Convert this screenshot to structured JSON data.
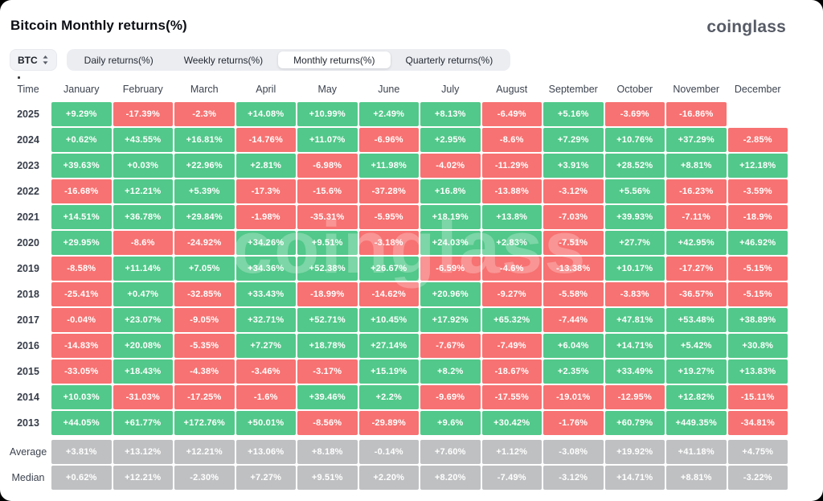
{
  "page": {
    "title": "Bitcoin Monthly returns(%)",
    "brand": "coinglass",
    "watermark": "coinglass"
  },
  "controls": {
    "symbol": "BTC",
    "tabs": [
      {
        "label": "Daily returns(%)",
        "active": false
      },
      {
        "label": "Weekly returns(%)",
        "active": false
      },
      {
        "label": "Monthly returns(%)",
        "active": true
      },
      {
        "label": "Quarterly returns(%)",
        "active": false
      }
    ]
  },
  "colors": {
    "green": "#52c88a",
    "red": "#f77272",
    "neutral": "#bfc0c2",
    "tab_bar": "#ebedf1",
    "card": "#ffffff"
  },
  "table": {
    "time_header": "Time",
    "months": [
      "January",
      "February",
      "March",
      "April",
      "May",
      "June",
      "July",
      "August",
      "September",
      "October",
      "November",
      "December"
    ],
    "rows": [
      {
        "label": "2025",
        "type": "year",
        "cells": [
          {
            "v": "+9.29%",
            "c": "g"
          },
          {
            "v": "-17.39%",
            "c": "r"
          },
          {
            "v": "-2.3%",
            "c": "r"
          },
          {
            "v": "+14.08%",
            "c": "g"
          },
          {
            "v": "+10.99%",
            "c": "g"
          },
          {
            "v": "+2.49%",
            "c": "g"
          },
          {
            "v": "+8.13%",
            "c": "g"
          },
          {
            "v": "-6.49%",
            "c": "r"
          },
          {
            "v": "+5.16%",
            "c": "g"
          },
          {
            "v": "-3.69%",
            "c": "r"
          },
          {
            "v": "-16.86%",
            "c": "r"
          },
          {
            "v": "",
            "c": "e"
          }
        ]
      },
      {
        "label": "2024",
        "type": "year",
        "cells": [
          {
            "v": "+0.62%",
            "c": "g"
          },
          {
            "v": "+43.55%",
            "c": "g"
          },
          {
            "v": "+16.81%",
            "c": "g"
          },
          {
            "v": "-14.76%",
            "c": "r"
          },
          {
            "v": "+11.07%",
            "c": "g"
          },
          {
            "v": "-6.96%",
            "c": "r"
          },
          {
            "v": "+2.95%",
            "c": "g"
          },
          {
            "v": "-8.6%",
            "c": "r"
          },
          {
            "v": "+7.29%",
            "c": "g"
          },
          {
            "v": "+10.76%",
            "c": "g"
          },
          {
            "v": "+37.29%",
            "c": "g"
          },
          {
            "v": "-2.85%",
            "c": "r"
          }
        ]
      },
      {
        "label": "2023",
        "type": "year",
        "cells": [
          {
            "v": "+39.63%",
            "c": "g"
          },
          {
            "v": "+0.03%",
            "c": "g"
          },
          {
            "v": "+22.96%",
            "c": "g"
          },
          {
            "v": "+2.81%",
            "c": "g"
          },
          {
            "v": "-6.98%",
            "c": "r"
          },
          {
            "v": "+11.98%",
            "c": "g"
          },
          {
            "v": "-4.02%",
            "c": "r"
          },
          {
            "v": "-11.29%",
            "c": "r"
          },
          {
            "v": "+3.91%",
            "c": "g"
          },
          {
            "v": "+28.52%",
            "c": "g"
          },
          {
            "v": "+8.81%",
            "c": "g"
          },
          {
            "v": "+12.18%",
            "c": "g"
          }
        ]
      },
      {
        "label": "2022",
        "type": "year",
        "cells": [
          {
            "v": "-16.68%",
            "c": "r"
          },
          {
            "v": "+12.21%",
            "c": "g"
          },
          {
            "v": "+5.39%",
            "c": "g"
          },
          {
            "v": "-17.3%",
            "c": "r"
          },
          {
            "v": "-15.6%",
            "c": "r"
          },
          {
            "v": "-37.28%",
            "c": "r"
          },
          {
            "v": "+16.8%",
            "c": "g"
          },
          {
            "v": "-13.88%",
            "c": "r"
          },
          {
            "v": "-3.12%",
            "c": "r"
          },
          {
            "v": "+5.56%",
            "c": "g"
          },
          {
            "v": "-16.23%",
            "c": "r"
          },
          {
            "v": "-3.59%",
            "c": "r"
          }
        ]
      },
      {
        "label": "2021",
        "type": "year",
        "cells": [
          {
            "v": "+14.51%",
            "c": "g"
          },
          {
            "v": "+36.78%",
            "c": "g"
          },
          {
            "v": "+29.84%",
            "c": "g"
          },
          {
            "v": "-1.98%",
            "c": "r"
          },
          {
            "v": "-35.31%",
            "c": "r"
          },
          {
            "v": "-5.95%",
            "c": "r"
          },
          {
            "v": "+18.19%",
            "c": "g"
          },
          {
            "v": "+13.8%",
            "c": "g"
          },
          {
            "v": "-7.03%",
            "c": "r"
          },
          {
            "v": "+39.93%",
            "c": "g"
          },
          {
            "v": "-7.11%",
            "c": "r"
          },
          {
            "v": "-18.9%",
            "c": "r"
          }
        ]
      },
      {
        "label": "2020",
        "type": "year",
        "cells": [
          {
            "v": "+29.95%",
            "c": "g"
          },
          {
            "v": "-8.6%",
            "c": "r"
          },
          {
            "v": "-24.92%",
            "c": "r"
          },
          {
            "v": "+34.26%",
            "c": "g"
          },
          {
            "v": "+9.51%",
            "c": "g"
          },
          {
            "v": "-3.18%",
            "c": "r"
          },
          {
            "v": "+24.03%",
            "c": "g"
          },
          {
            "v": "+2.83%",
            "c": "g"
          },
          {
            "v": "-7.51%",
            "c": "r"
          },
          {
            "v": "+27.7%",
            "c": "g"
          },
          {
            "v": "+42.95%",
            "c": "g"
          },
          {
            "v": "+46.92%",
            "c": "g"
          }
        ]
      },
      {
        "label": "2019",
        "type": "year",
        "cells": [
          {
            "v": "-8.58%",
            "c": "r"
          },
          {
            "v": "+11.14%",
            "c": "g"
          },
          {
            "v": "+7.05%",
            "c": "g"
          },
          {
            "v": "+34.36%",
            "c": "g"
          },
          {
            "v": "+52.38%",
            "c": "g"
          },
          {
            "v": "+26.67%",
            "c": "g"
          },
          {
            "v": "-6.59%",
            "c": "r"
          },
          {
            "v": "-4.6%",
            "c": "r"
          },
          {
            "v": "-13.38%",
            "c": "r"
          },
          {
            "v": "+10.17%",
            "c": "g"
          },
          {
            "v": "-17.27%",
            "c": "r"
          },
          {
            "v": "-5.15%",
            "c": "r"
          }
        ]
      },
      {
        "label": "2018",
        "type": "year",
        "cells": [
          {
            "v": "-25.41%",
            "c": "r"
          },
          {
            "v": "+0.47%",
            "c": "g"
          },
          {
            "v": "-32.85%",
            "c": "r"
          },
          {
            "v": "+33.43%",
            "c": "g"
          },
          {
            "v": "-18.99%",
            "c": "r"
          },
          {
            "v": "-14.62%",
            "c": "r"
          },
          {
            "v": "+20.96%",
            "c": "g"
          },
          {
            "v": "-9.27%",
            "c": "r"
          },
          {
            "v": "-5.58%",
            "c": "r"
          },
          {
            "v": "-3.83%",
            "c": "r"
          },
          {
            "v": "-36.57%",
            "c": "r"
          },
          {
            "v": "-5.15%",
            "c": "r"
          }
        ]
      },
      {
        "label": "2017",
        "type": "year",
        "cells": [
          {
            "v": "-0.04%",
            "c": "r"
          },
          {
            "v": "+23.07%",
            "c": "g"
          },
          {
            "v": "-9.05%",
            "c": "r"
          },
          {
            "v": "+32.71%",
            "c": "g"
          },
          {
            "v": "+52.71%",
            "c": "g"
          },
          {
            "v": "+10.45%",
            "c": "g"
          },
          {
            "v": "+17.92%",
            "c": "g"
          },
          {
            "v": "+65.32%",
            "c": "g"
          },
          {
            "v": "-7.44%",
            "c": "r"
          },
          {
            "v": "+47.81%",
            "c": "g"
          },
          {
            "v": "+53.48%",
            "c": "g"
          },
          {
            "v": "+38.89%",
            "c": "g"
          }
        ]
      },
      {
        "label": "2016",
        "type": "year",
        "cells": [
          {
            "v": "-14.83%",
            "c": "r"
          },
          {
            "v": "+20.08%",
            "c": "g"
          },
          {
            "v": "-5.35%",
            "c": "r"
          },
          {
            "v": "+7.27%",
            "c": "g"
          },
          {
            "v": "+18.78%",
            "c": "g"
          },
          {
            "v": "+27.14%",
            "c": "g"
          },
          {
            "v": "-7.67%",
            "c": "r"
          },
          {
            "v": "-7.49%",
            "c": "r"
          },
          {
            "v": "+6.04%",
            "c": "g"
          },
          {
            "v": "+14.71%",
            "c": "g"
          },
          {
            "v": "+5.42%",
            "c": "g"
          },
          {
            "v": "+30.8%",
            "c": "g"
          }
        ]
      },
      {
        "label": "2015",
        "type": "year",
        "cells": [
          {
            "v": "-33.05%",
            "c": "r"
          },
          {
            "v": "+18.43%",
            "c": "g"
          },
          {
            "v": "-4.38%",
            "c": "r"
          },
          {
            "v": "-3.46%",
            "c": "r"
          },
          {
            "v": "-3.17%",
            "c": "r"
          },
          {
            "v": "+15.19%",
            "c": "g"
          },
          {
            "v": "+8.2%",
            "c": "g"
          },
          {
            "v": "-18.67%",
            "c": "r"
          },
          {
            "v": "+2.35%",
            "c": "g"
          },
          {
            "v": "+33.49%",
            "c": "g"
          },
          {
            "v": "+19.27%",
            "c": "g"
          },
          {
            "v": "+13.83%",
            "c": "g"
          }
        ]
      },
      {
        "label": "2014",
        "type": "year",
        "cells": [
          {
            "v": "+10.03%",
            "c": "g"
          },
          {
            "v": "-31.03%",
            "c": "r"
          },
          {
            "v": "-17.25%",
            "c": "r"
          },
          {
            "v": "-1.6%",
            "c": "r"
          },
          {
            "v": "+39.46%",
            "c": "g"
          },
          {
            "v": "+2.2%",
            "c": "g"
          },
          {
            "v": "-9.69%",
            "c": "r"
          },
          {
            "v": "-17.55%",
            "c": "r"
          },
          {
            "v": "-19.01%",
            "c": "r"
          },
          {
            "v": "-12.95%",
            "c": "r"
          },
          {
            "v": "+12.82%",
            "c": "g"
          },
          {
            "v": "-15.11%",
            "c": "r"
          }
        ]
      },
      {
        "label": "2013",
        "type": "year",
        "cells": [
          {
            "v": "+44.05%",
            "c": "g"
          },
          {
            "v": "+61.77%",
            "c": "g"
          },
          {
            "v": "+172.76%",
            "c": "g"
          },
          {
            "v": "+50.01%",
            "c": "g"
          },
          {
            "v": "-8.56%",
            "c": "r"
          },
          {
            "v": "-29.89%",
            "c": "r"
          },
          {
            "v": "+9.6%",
            "c": "g"
          },
          {
            "v": "+30.42%",
            "c": "g"
          },
          {
            "v": "-1.76%",
            "c": "r"
          },
          {
            "v": "+60.79%",
            "c": "g"
          },
          {
            "v": "+449.35%",
            "c": "g"
          },
          {
            "v": "-34.81%",
            "c": "r"
          }
        ]
      },
      {
        "label": "Average",
        "type": "summary",
        "spacer": true,
        "cells": [
          {
            "v": "+3.81%",
            "c": "n"
          },
          {
            "v": "+13.12%",
            "c": "n"
          },
          {
            "v": "+12.21%",
            "c": "n"
          },
          {
            "v": "+13.06%",
            "c": "n"
          },
          {
            "v": "+8.18%",
            "c": "n"
          },
          {
            "v": "-0.14%",
            "c": "n"
          },
          {
            "v": "+7.60%",
            "c": "n"
          },
          {
            "v": "+1.12%",
            "c": "n"
          },
          {
            "v": "-3.08%",
            "c": "n"
          },
          {
            "v": "+19.92%",
            "c": "n"
          },
          {
            "v": "+41.18%",
            "c": "n"
          },
          {
            "v": "+4.75%",
            "c": "n"
          }
        ]
      },
      {
        "label": "Median",
        "type": "summary",
        "cells": [
          {
            "v": "+0.62%",
            "c": "n"
          },
          {
            "v": "+12.21%",
            "c": "n"
          },
          {
            "v": "-2.30%",
            "c": "n"
          },
          {
            "v": "+7.27%",
            "c": "n"
          },
          {
            "v": "+9.51%",
            "c": "n"
          },
          {
            "v": "+2.20%",
            "c": "n"
          },
          {
            "v": "+8.20%",
            "c": "n"
          },
          {
            "v": "-7.49%",
            "c": "n"
          },
          {
            "v": "-3.12%",
            "c": "n"
          },
          {
            "v": "+14.71%",
            "c": "n"
          },
          {
            "v": "+8.81%",
            "c": "n"
          },
          {
            "v": "-3.22%",
            "c": "n"
          }
        ]
      }
    ]
  }
}
